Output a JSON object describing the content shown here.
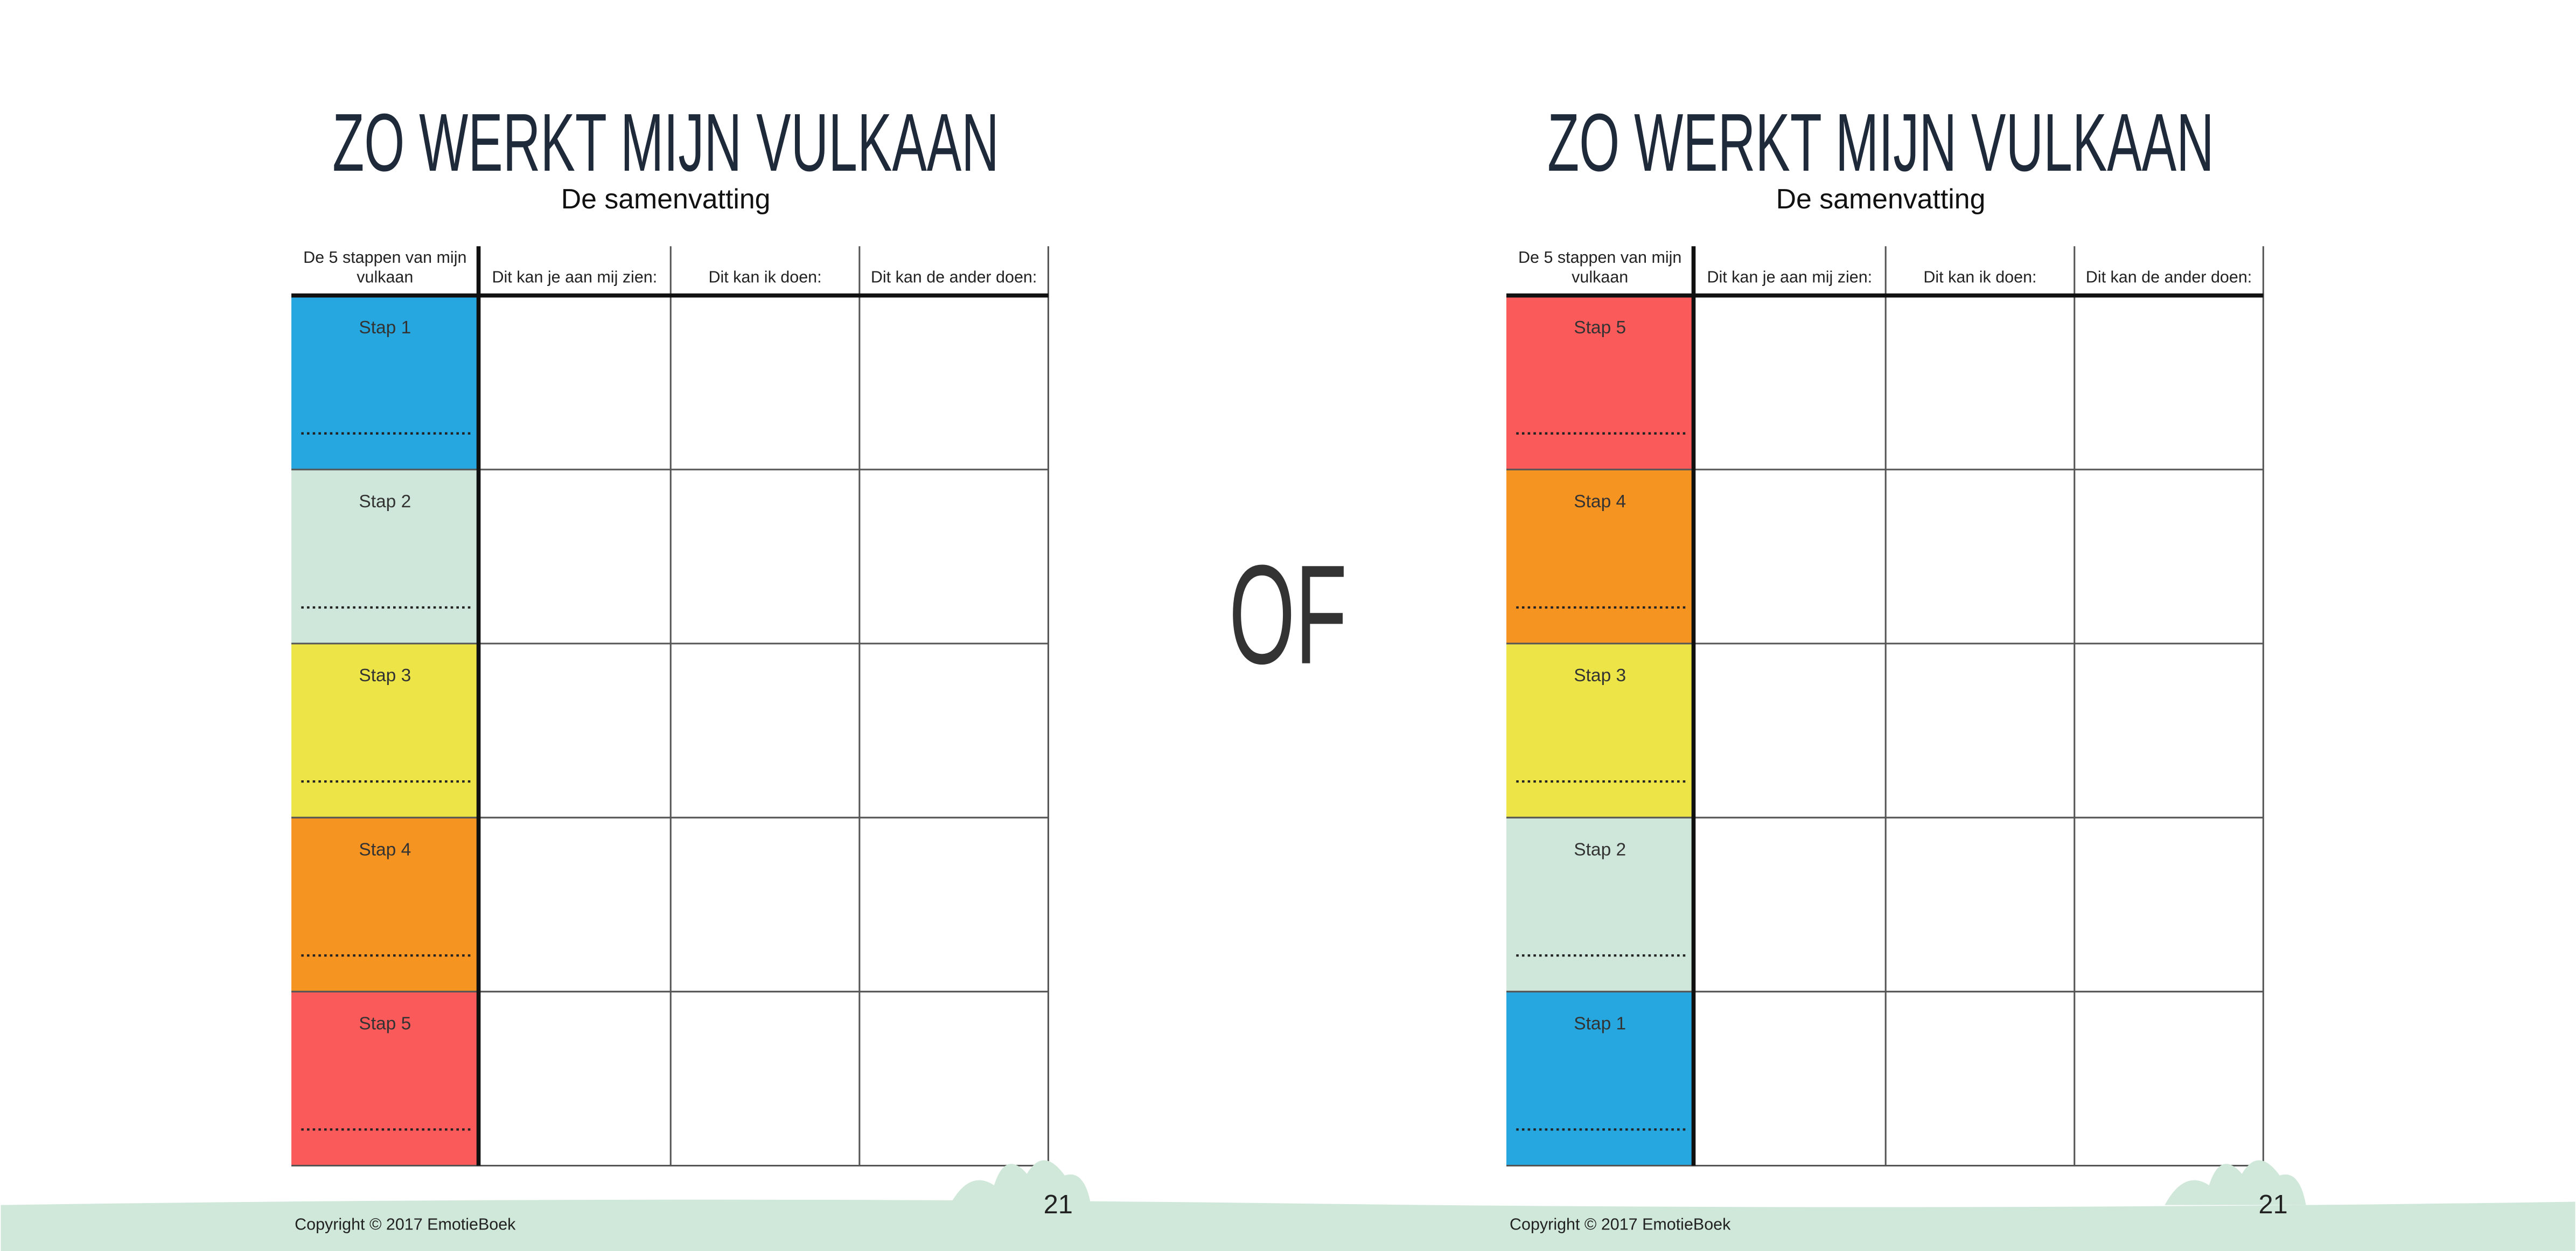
{
  "left": {
    "title": "ZO WERKT MIJN VULKAAN",
    "subtitle": "De samenvatting",
    "headers": [
      "De 5 stappen van mijn vulkaan",
      "Dit kan je aan mij zien:",
      "Dit kan ik doen:",
      "Dit kan de ander doen:"
    ],
    "steps": [
      {
        "label": "Stap 1",
        "color": "#27a7df"
      },
      {
        "label": "Stap 2",
        "color": "#cfe7da"
      },
      {
        "label": "Stap 3",
        "color": "#ede547"
      },
      {
        "label": "Stap 4",
        "color": "#f69422"
      },
      {
        "label": "Stap 5",
        "color": "#fb5a5a"
      }
    ],
    "page_number": "21",
    "copyright": "Copyright © 2017 EmotieBoek"
  },
  "separator": "OF",
  "right": {
    "title": "ZO WERKT MIJN VULKAAN",
    "subtitle": "De samenvatting",
    "headers": [
      "De 5 stappen van mijn vulkaan",
      "Dit kan je aan mij zien:",
      "Dit kan ik doen:",
      "Dit kan de ander doen:"
    ],
    "steps": [
      {
        "label": "Stap 5",
        "color": "#fb5a5a"
      },
      {
        "label": "Stap 4",
        "color": "#f69422"
      },
      {
        "label": "Stap 3",
        "color": "#ede547"
      },
      {
        "label": "Stap 2",
        "color": "#cfe7da"
      },
      {
        "label": "Stap 1",
        "color": "#27a7df"
      }
    ],
    "page_number": "21",
    "copyright": "Copyright © 2017 EmotieBoek"
  }
}
